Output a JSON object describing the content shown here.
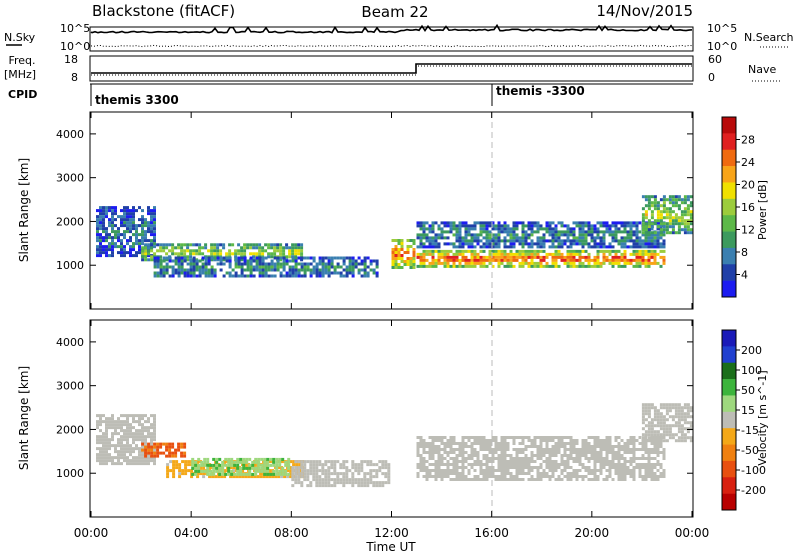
{
  "header": {
    "station": "Blackstone (fitACF)",
    "beam": "Beam 22",
    "date": "14/Nov/2015"
  },
  "noise_panel": {
    "left_label": "N.Sky",
    "right_label": "N.Search",
    "left_ticks": [
      "10^5",
      "10^0"
    ],
    "right_ticks": [
      "10^5",
      "10^0"
    ]
  },
  "freq_panel": {
    "left_label_line1": "Freq.",
    "left_label_line2": "[MHz]",
    "left_ticks": [
      "18",
      "8"
    ],
    "right_label": "Nave",
    "right_ticks": [
      "60",
      "0"
    ]
  },
  "cpid": {
    "label": "CPID",
    "segments": [
      {
        "name": "themis 3300",
        "start_hour": 0
      },
      {
        "name": "themis -3300",
        "start_hour": 16
      }
    ]
  },
  "colors": {
    "power_scale": [
      "#1c1cf0",
      "#2040a8",
      "#3a7fb0",
      "#3c9a5e",
      "#5cb848",
      "#9ccc3c",
      "#f0e000",
      "#f8a418",
      "#ef6a10",
      "#e02020",
      "#b80a0a"
    ],
    "velocity_scale": [
      "#1a1ab8",
      "#2040d0",
      "#1a6e1a",
      "#3cb43c",
      "#9ed87e",
      "#bdbdb6",
      "#f4a818",
      "#f08010",
      "#e85010",
      "#d82010",
      "#b80000"
    ],
    "ground_scatter": "#bdbdb6"
  },
  "chart_data": [
    {
      "type": "heatmap",
      "name": "power",
      "ylabel": "Slant Range [km]",
      "yticks": [
        "1000",
        "2000",
        "3000",
        "4000"
      ],
      "ylim": [
        0,
        4500
      ],
      "xlim": [
        0,
        24
      ],
      "colorbar": {
        "label": "Power [dB]",
        "ticks": [
          "4",
          "8",
          "12",
          "16",
          "20",
          "24",
          "28"
        ],
        "range": [
          0,
          30
        ]
      },
      "echo_bands": [
        {
          "start_hour": 0.2,
          "end_hour": 2.6,
          "range_low_km": 1200,
          "range_high_km": 2350,
          "power_db": 6
        },
        {
          "start_hour": 2.0,
          "end_hour": 8.5,
          "range_low_km": 1100,
          "range_high_km": 1500,
          "power_db": 15
        },
        {
          "start_hour": 2.5,
          "end_hour": 11.5,
          "range_low_km": 700,
          "range_high_km": 1200,
          "power_db": 8
        },
        {
          "start_hour": 12.0,
          "end_hour": 12.9,
          "range_low_km": 900,
          "range_high_km": 1600,
          "power_db": 22
        },
        {
          "start_hour": 13.0,
          "end_hour": 23.0,
          "range_low_km": 950,
          "range_high_km": 1350,
          "power_db": 24
        },
        {
          "start_hour": 13.0,
          "end_hour": 23.0,
          "range_low_km": 1350,
          "range_high_km": 2000,
          "power_db": 8
        },
        {
          "start_hour": 22.0,
          "end_hour": 24.0,
          "range_low_km": 1700,
          "range_high_km": 2600,
          "power_db": 14
        }
      ]
    },
    {
      "type": "heatmap",
      "name": "velocity",
      "xlabel": "Time UT",
      "ylabel": "Slant Range [km]",
      "xticks": [
        "00:00",
        "04:00",
        "08:00",
        "12:00",
        "16:00",
        "20:00",
        "00:00"
      ],
      "yticks": [
        "1000",
        "2000",
        "3000",
        "4000"
      ],
      "ylim": [
        0,
        4500
      ],
      "xlim": [
        0,
        24
      ],
      "colorbar": {
        "label": "Velocity [m s^-1]",
        "ticks": [
          "200",
          "100",
          "50",
          "15",
          "-15",
          "-50",
          "-100",
          "-200"
        ],
        "range": [
          -250,
          250
        ]
      },
      "echo_bands": [
        {
          "start_hour": 0.2,
          "end_hour": 2.6,
          "range_low_km": 1200,
          "range_high_km": 2350,
          "velocity": 0
        },
        {
          "start_hour": 2.0,
          "end_hour": 3.8,
          "range_low_km": 1350,
          "range_high_km": 1700,
          "velocity": -120
        },
        {
          "start_hour": 3.0,
          "end_hour": 8.5,
          "range_low_km": 900,
          "range_high_km": 1300,
          "velocity": -40
        },
        {
          "start_hour": 4.0,
          "end_hour": 8.0,
          "range_low_km": 950,
          "range_high_km": 1350,
          "velocity": 60
        },
        {
          "start_hour": 8.0,
          "end_hour": 12.0,
          "range_low_km": 700,
          "range_high_km": 1300,
          "velocity": 0
        },
        {
          "start_hour": 13.0,
          "end_hour": 23.0,
          "range_low_km": 800,
          "range_high_km": 1850,
          "velocity": 0
        },
        {
          "start_hour": 22.0,
          "end_hour": 24.0,
          "range_low_km": 1700,
          "range_high_km": 2600,
          "velocity": 0
        }
      ]
    }
  ]
}
